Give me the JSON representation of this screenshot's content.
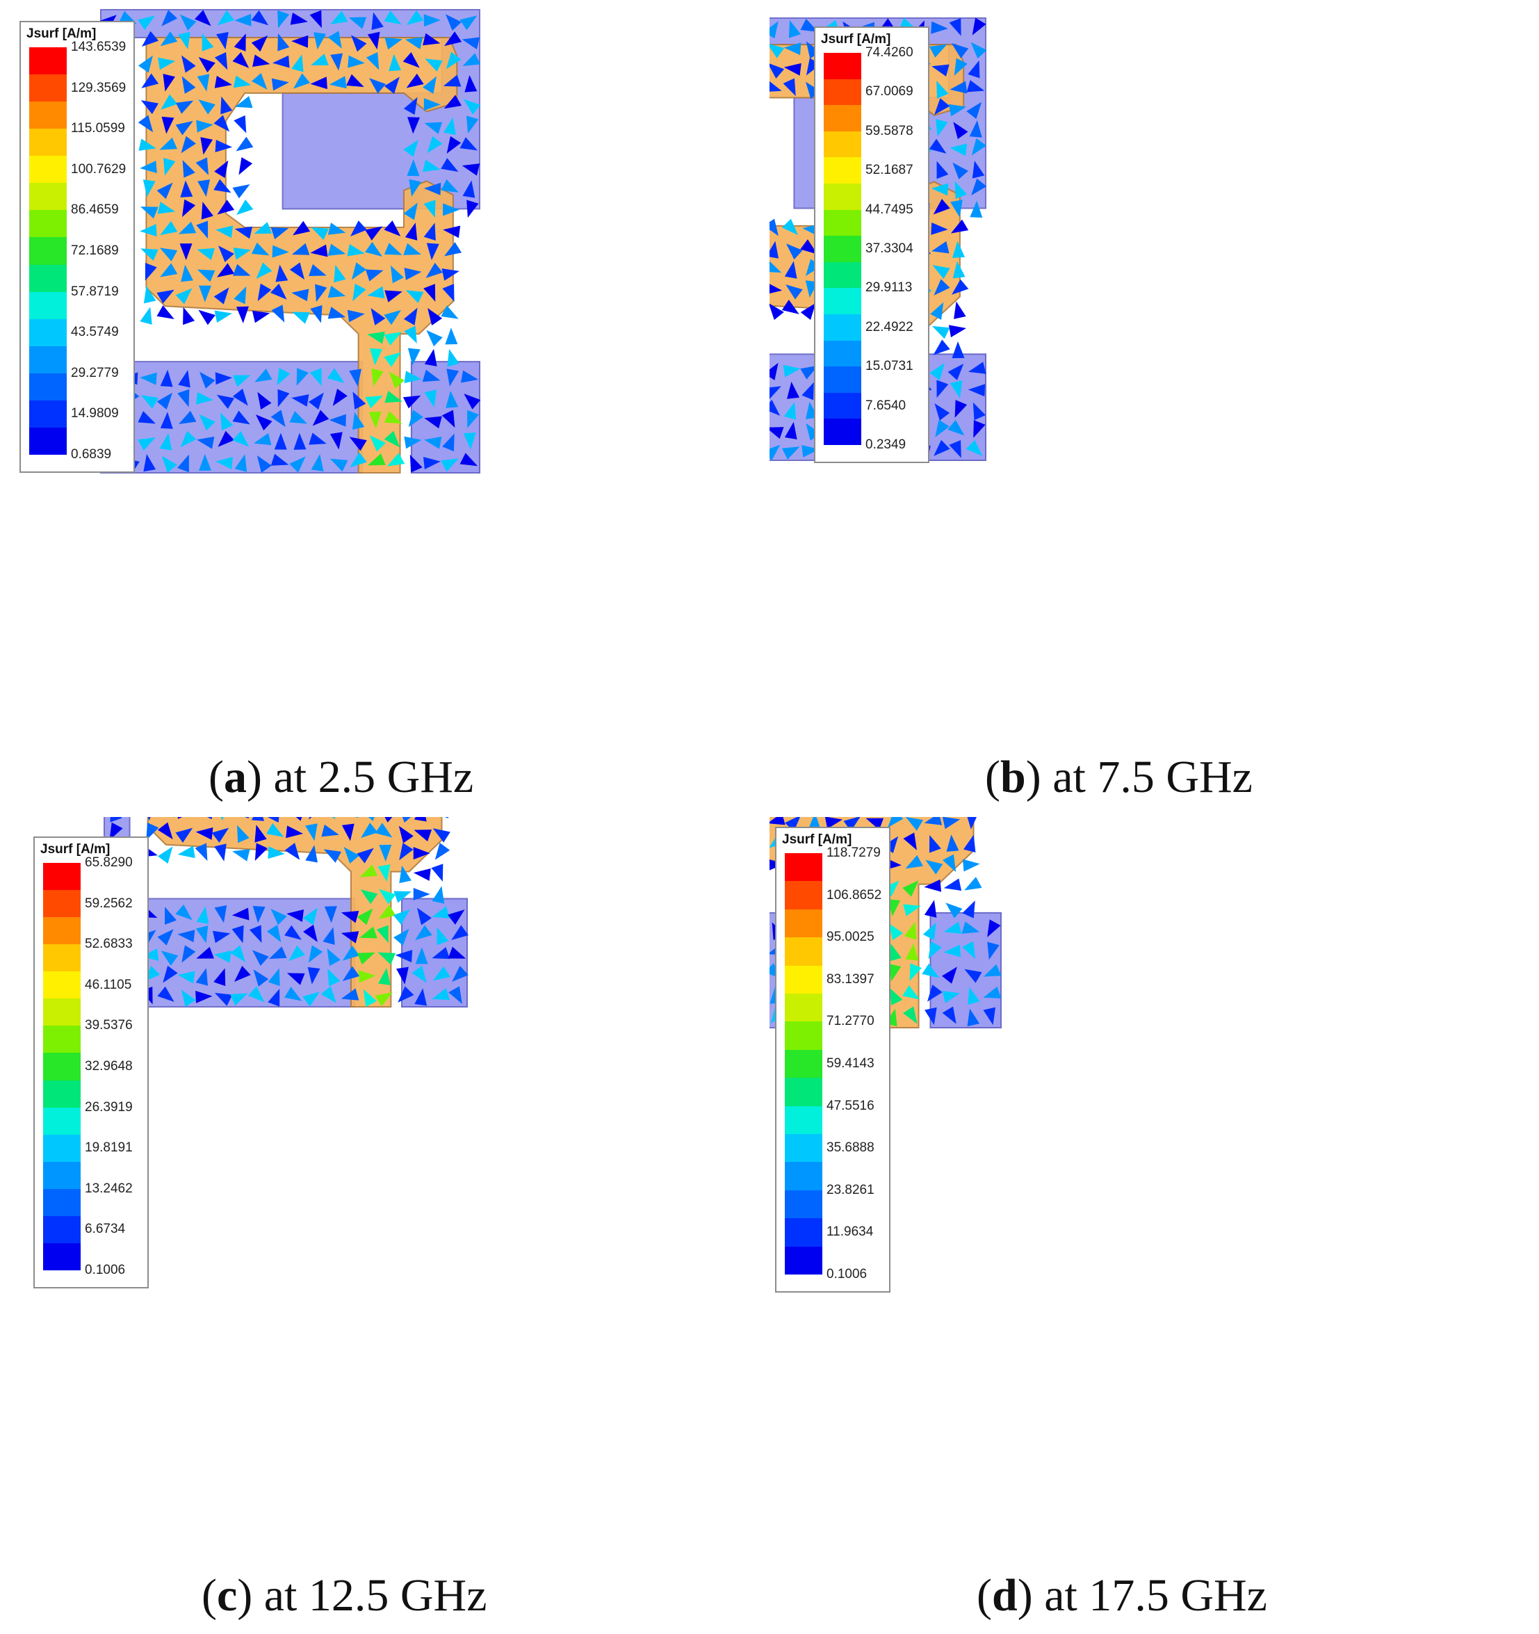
{
  "panels": [
    {
      "id": "a",
      "letter": "a",
      "caption_text": "at 2.5 GHz",
      "legend_title": "Jsurf [A/m]",
      "ticks": [
        "143.6539",
        "129.3569",
        "115.0599",
        "100.7629",
        "86.4659",
        "72.1689",
        "57.8719",
        "43.5749",
        "29.2779",
        "14.9809",
        "0.6839"
      ],
      "max": 143.6539,
      "min": 0.6839
    },
    {
      "id": "b",
      "letter": "b",
      "caption_text": "at 7.5 GHz",
      "legend_title": "Jsurf [A/m]",
      "ticks": [
        "74.4260",
        "67.0069",
        "59.5878",
        "52.1687",
        "44.7495",
        "37.3304",
        "29.9113",
        "22.4922",
        "15.0731",
        "7.6540",
        "0.2349"
      ],
      "max": 74.426,
      "min": 0.2349
    },
    {
      "id": "c",
      "letter": "c",
      "caption_text": "at 12.5 GHz",
      "legend_title": "Jsurf [A/m]",
      "ticks": [
        "65.8290",
        "59.2562",
        "52.6833",
        "46.1105",
        "39.5376",
        "32.9648",
        "26.3919",
        "19.8191",
        "13.2462",
        "6.6734",
        "0.1006"
      ],
      "max": 65.829,
      "min": 0.1006
    },
    {
      "id": "d",
      "letter": "d",
      "caption_text": "at 17.5 GHz",
      "legend_title": "Jsurf [A/m]",
      "ticks": [
        "118.7279",
        "106.8652",
        "95.0025",
        "83.1397",
        "71.2770",
        "59.4143",
        "47.5516",
        "35.6888",
        "23.8261",
        "11.9634",
        "0.1006"
      ],
      "max": 118.7279,
      "min": 0.1006
    }
  ],
  "colors": {
    "ground": "#9c9cf2",
    "ground_edge": "#6a6ac8",
    "patch": "#f6b35c",
    "patch_edge": "#b07a3a",
    "colormap": [
      "#ff0000",
      "#ff4a00",
      "#ff8a00",
      "#ffc800",
      "#fff000",
      "#c8f000",
      "#7cf000",
      "#28e628",
      "#00e678",
      "#00f0dc",
      "#00c8ff",
      "#0096ff",
      "#0064ff",
      "#0032ff",
      "#0000f0"
    ]
  }
}
